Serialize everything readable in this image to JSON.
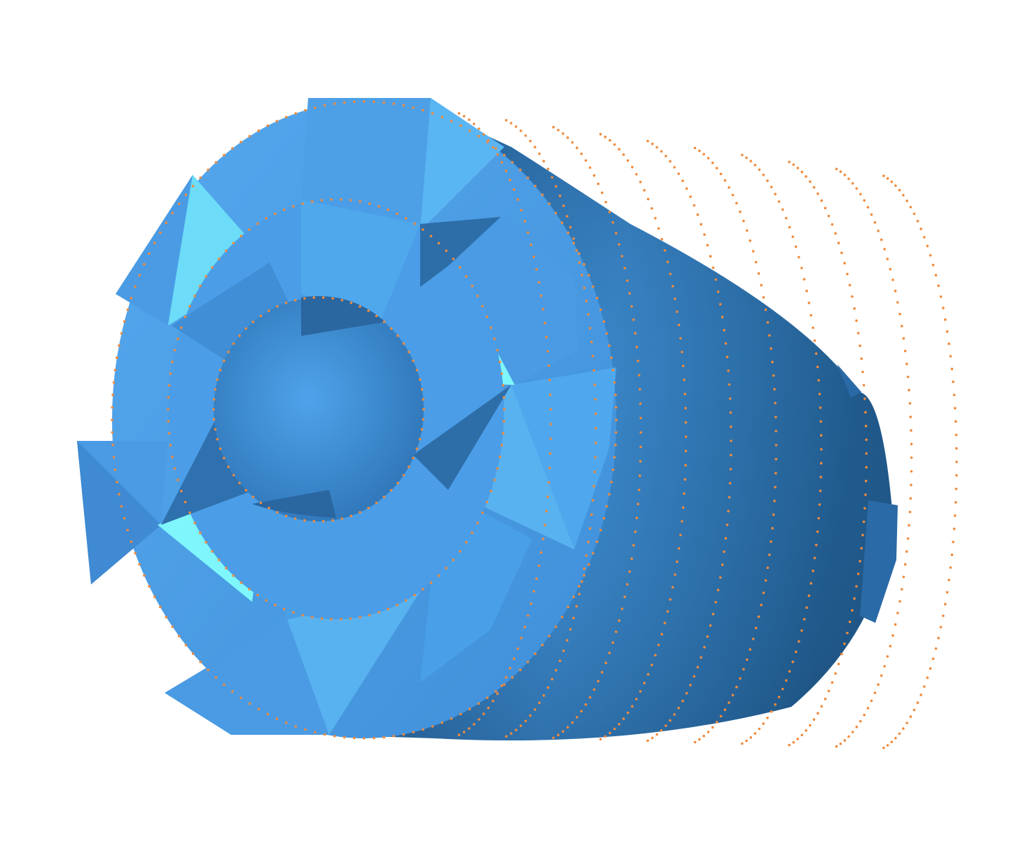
{
  "scene": {
    "object": "mesh-3d-render",
    "colors": {
      "background": "#ffffff",
      "body_dark": "#1f5a8c",
      "body_mid": "#2f77b8",
      "face_base": "#4a9be4",
      "face_light": "#5bb6f2",
      "face_highlight": "#7ef6fb",
      "face_shadow": "#2d6da8",
      "vertex_dot": "#f08a3c"
    }
  }
}
